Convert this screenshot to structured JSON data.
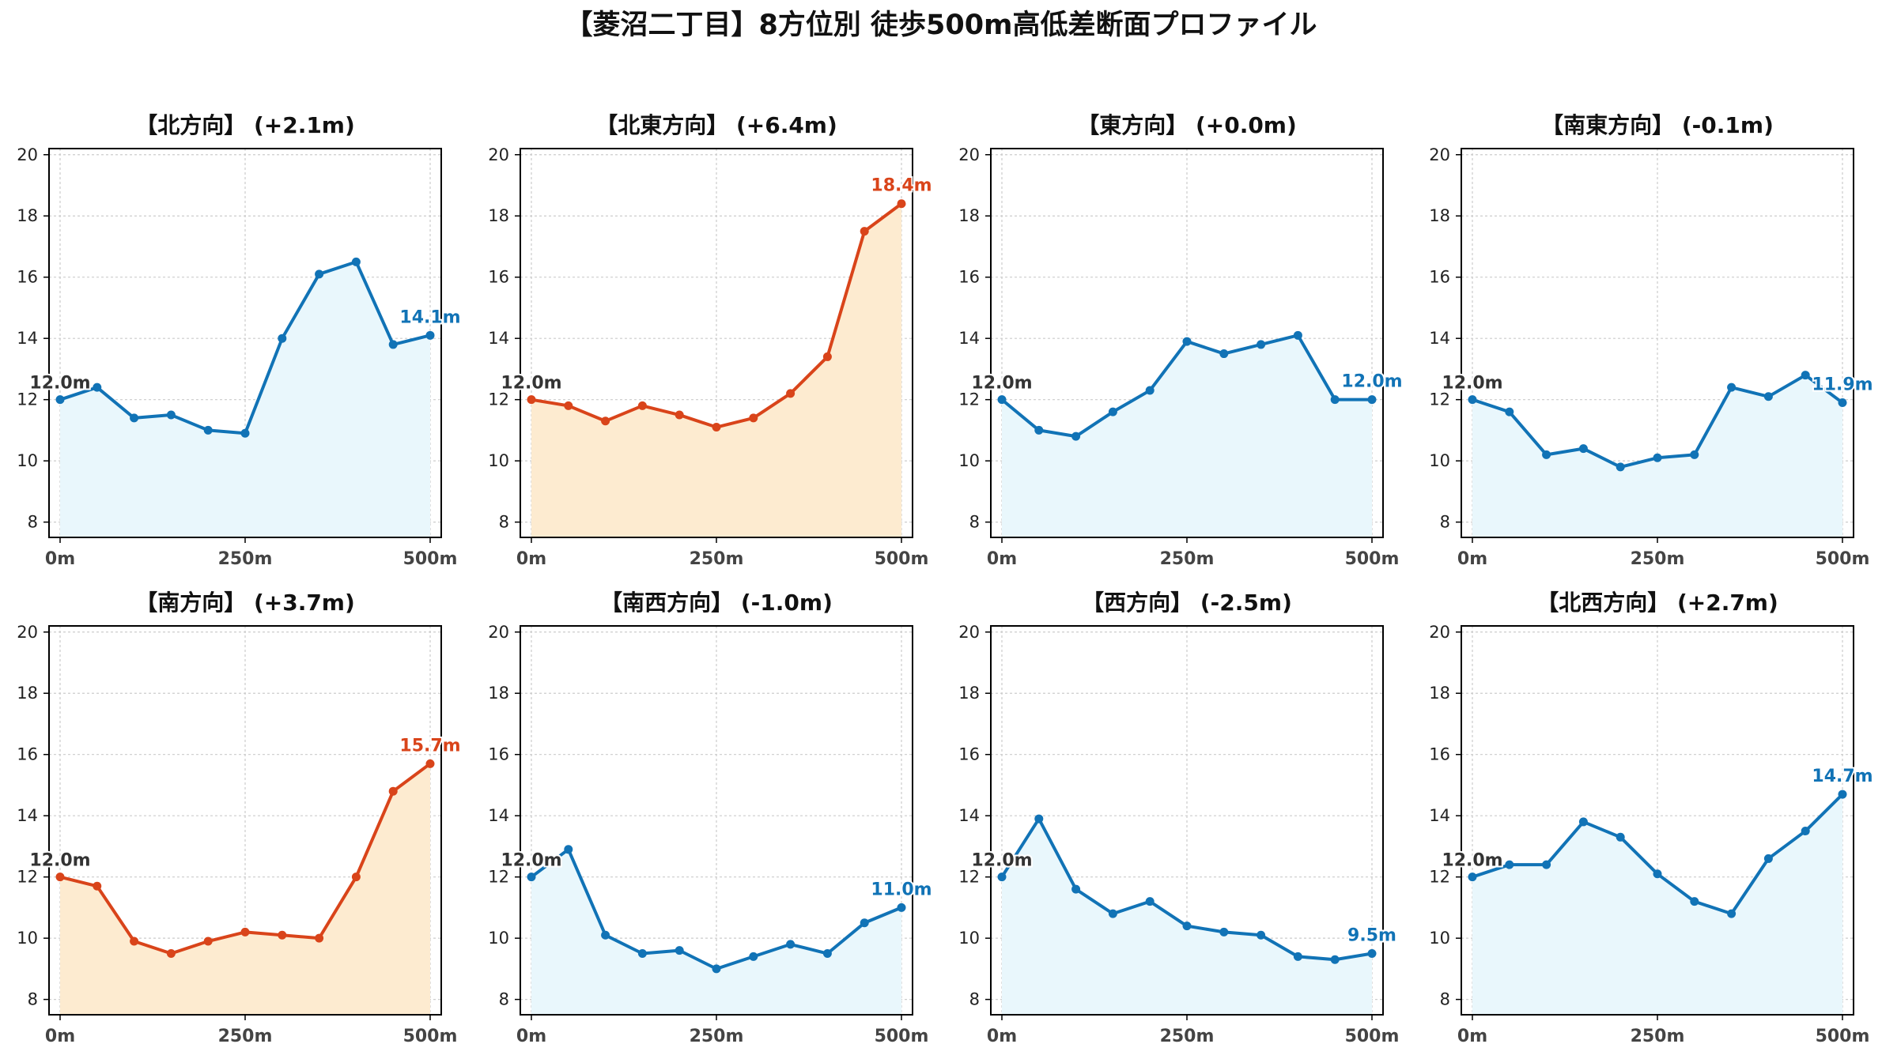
{
  "title": "【菱沼二丁目】8方位別 徒歩500m高低差断面プロファイル",
  "colors": {
    "up": "#d9441a",
    "up_fill": "#fdebd0",
    "neutral": "#1173b6",
    "neutral_fill": "#e9f7fc",
    "start_label": "#333333"
  },
  "chart_data": [
    {
      "type": "area",
      "title": "【北方向】 (+2.1m)",
      "trend": "neutral",
      "x": [
        0,
        50,
        100,
        150,
        200,
        250,
        300,
        350,
        400,
        450,
        500
      ],
      "y": [
        12.0,
        12.4,
        11.4,
        11.5,
        11.0,
        10.9,
        14.0,
        16.1,
        16.5,
        13.8,
        14.1
      ],
      "start_label": "12.0m",
      "end_label": "14.1m",
      "xticks": [
        "0m",
        "250m",
        "500m"
      ],
      "yticks": [
        8,
        10,
        12,
        14,
        16,
        18,
        20
      ],
      "ylim": [
        7.5,
        20.2
      ],
      "xlim": [
        0,
        500
      ],
      "grid": true
    },
    {
      "type": "area",
      "title": "【北東方向】 (+6.4m)",
      "trend": "up",
      "x": [
        0,
        50,
        100,
        150,
        200,
        250,
        300,
        350,
        400,
        450,
        500
      ],
      "y": [
        12.0,
        11.8,
        11.3,
        11.8,
        11.5,
        11.1,
        11.4,
        12.2,
        13.4,
        17.5,
        18.4
      ],
      "start_label": "12.0m",
      "end_label": "18.4m",
      "xticks": [
        "0m",
        "250m",
        "500m"
      ],
      "yticks": [
        8,
        10,
        12,
        14,
        16,
        18,
        20
      ],
      "ylim": [
        7.5,
        20.2
      ],
      "xlim": [
        0,
        500
      ],
      "grid": true
    },
    {
      "type": "area",
      "title": "【東方向】 (+0.0m)",
      "trend": "neutral",
      "x": [
        0,
        50,
        100,
        150,
        200,
        250,
        300,
        350,
        400,
        450,
        500
      ],
      "y": [
        12.0,
        11.0,
        10.8,
        11.6,
        12.3,
        13.9,
        13.5,
        13.8,
        14.1,
        12.0,
        12.0
      ],
      "start_label": "12.0m",
      "end_label": "12.0m",
      "xticks": [
        "0m",
        "250m",
        "500m"
      ],
      "yticks": [
        8,
        10,
        12,
        14,
        16,
        18,
        20
      ],
      "ylim": [
        7.5,
        20.2
      ],
      "xlim": [
        0,
        500
      ],
      "grid": true
    },
    {
      "type": "area",
      "title": "【南東方向】 (-0.1m)",
      "trend": "neutral",
      "x": [
        0,
        50,
        100,
        150,
        200,
        250,
        300,
        350,
        400,
        450,
        500
      ],
      "y": [
        12.0,
        11.6,
        10.2,
        10.4,
        9.8,
        10.1,
        10.2,
        12.4,
        12.1,
        12.8,
        11.9
      ],
      "start_label": "12.0m",
      "end_label": "11.9m",
      "xticks": [
        "0m",
        "250m",
        "500m"
      ],
      "yticks": [
        8,
        10,
        12,
        14,
        16,
        18,
        20
      ],
      "ylim": [
        7.5,
        20.2
      ],
      "xlim": [
        0,
        500
      ],
      "grid": true
    },
    {
      "type": "area",
      "title": "【南方向】 (+3.7m)",
      "trend": "up",
      "x": [
        0,
        50,
        100,
        150,
        200,
        250,
        300,
        350,
        400,
        450,
        500
      ],
      "y": [
        12.0,
        11.7,
        9.9,
        9.5,
        9.9,
        10.2,
        10.1,
        10.0,
        12.0,
        14.8,
        15.7
      ],
      "start_label": "12.0m",
      "end_label": "15.7m",
      "xticks": [
        "0m",
        "250m",
        "500m"
      ],
      "yticks": [
        8,
        10,
        12,
        14,
        16,
        18,
        20
      ],
      "ylim": [
        7.5,
        20.2
      ],
      "xlim": [
        0,
        500
      ],
      "grid": true
    },
    {
      "type": "area",
      "title": "【南西方向】 (-1.0m)",
      "trend": "neutral",
      "x": [
        0,
        50,
        100,
        150,
        200,
        250,
        300,
        350,
        400,
        450,
        500
      ],
      "y": [
        12.0,
        12.9,
        10.1,
        9.5,
        9.6,
        9.0,
        9.4,
        9.8,
        9.5,
        10.5,
        11.0
      ],
      "start_label": "12.0m",
      "end_label": "11.0m",
      "xticks": [
        "0m",
        "250m",
        "500m"
      ],
      "yticks": [
        8,
        10,
        12,
        14,
        16,
        18,
        20
      ],
      "ylim": [
        7.5,
        20.2
      ],
      "xlim": [
        0,
        500
      ],
      "grid": true
    },
    {
      "type": "area",
      "title": "【西方向】 (-2.5m)",
      "trend": "neutral",
      "x": [
        0,
        50,
        100,
        150,
        200,
        250,
        300,
        350,
        400,
        450,
        500
      ],
      "y": [
        12.0,
        13.9,
        11.6,
        10.8,
        11.2,
        10.4,
        10.2,
        10.1,
        9.4,
        9.3,
        9.5
      ],
      "start_label": "12.0m",
      "end_label": "9.5m",
      "xticks": [
        "0m",
        "250m",
        "500m"
      ],
      "yticks": [
        8,
        10,
        12,
        14,
        16,
        18,
        20
      ],
      "ylim": [
        7.5,
        20.2
      ],
      "xlim": [
        0,
        500
      ],
      "grid": true
    },
    {
      "type": "area",
      "title": "【北西方向】 (+2.7m)",
      "trend": "neutral",
      "x": [
        0,
        50,
        100,
        150,
        200,
        250,
        300,
        350,
        400,
        450,
        500
      ],
      "y": [
        12.0,
        12.4,
        12.4,
        13.8,
        13.3,
        12.1,
        11.2,
        10.8,
        12.6,
        13.5,
        14.7
      ],
      "start_label": "12.0m",
      "end_label": "14.7m",
      "xticks": [
        "0m",
        "250m",
        "500m"
      ],
      "yticks": [
        8,
        10,
        12,
        14,
        16,
        18,
        20
      ],
      "ylim": [
        7.5,
        20.2
      ],
      "xlim": [
        0,
        500
      ],
      "grid": true
    }
  ]
}
